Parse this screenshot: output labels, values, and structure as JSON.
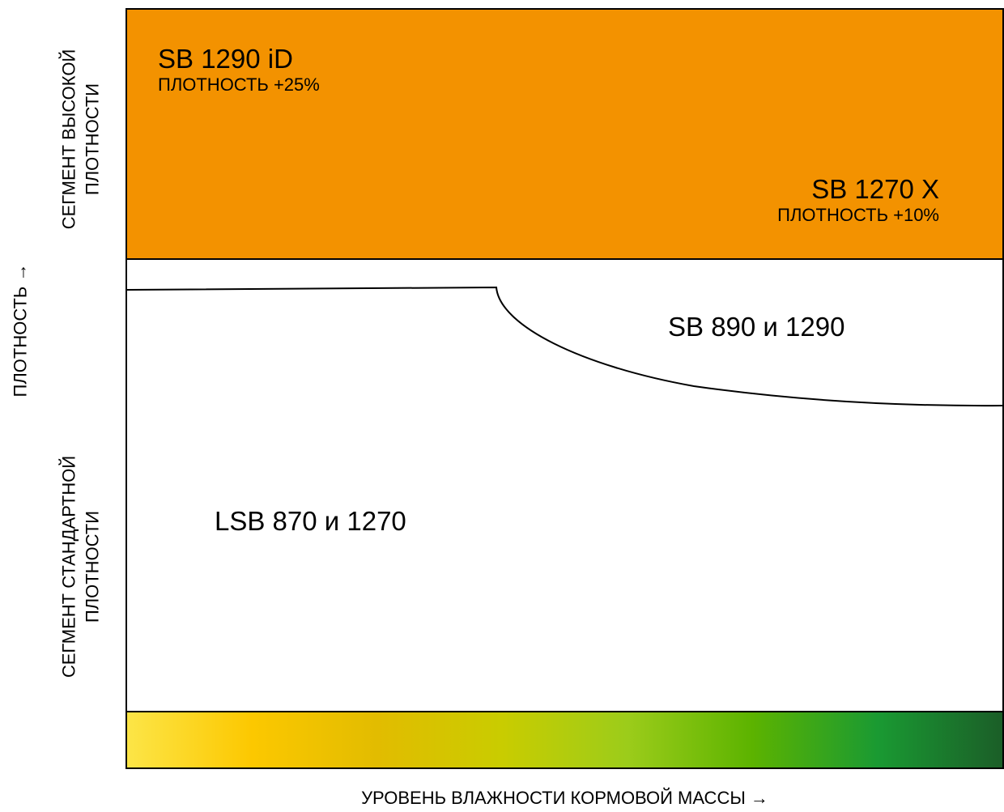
{
  "axes": {
    "y_label": "ПЛОТНОСТЬ →",
    "x_label": "УРОВЕНЬ ВЛАЖНОСТИ КОРМОВОЙ МАССЫ →"
  },
  "segments": {
    "high": {
      "label": "СЕГМЕНТ ВЫСОКОЙ\nПЛОТНОСТИ",
      "color": "#f39200"
    },
    "standard": {
      "label": "СЕГМЕНТ СТАНДАРТНОЙ\nПЛОТНОСТИ"
    }
  },
  "products": {
    "sb1290id": {
      "name": "SB 1290 iD",
      "note": "ПЛОТНОСТЬ +25%"
    },
    "sb1270x": {
      "name": "SB 1270 X",
      "note": "ПЛОТНОСТЬ +10%"
    },
    "sb890": {
      "name": "SB 890 и 1290"
    },
    "lsb870": {
      "name": "LSB 870 и 1270"
    }
  },
  "moisture_gradient": [
    "#fce547",
    "#fcc800",
    "#e2bc00",
    "#c9cc00",
    "#9ccc1a",
    "#5cb300",
    "#1a9a32",
    "#1b5e28"
  ]
}
